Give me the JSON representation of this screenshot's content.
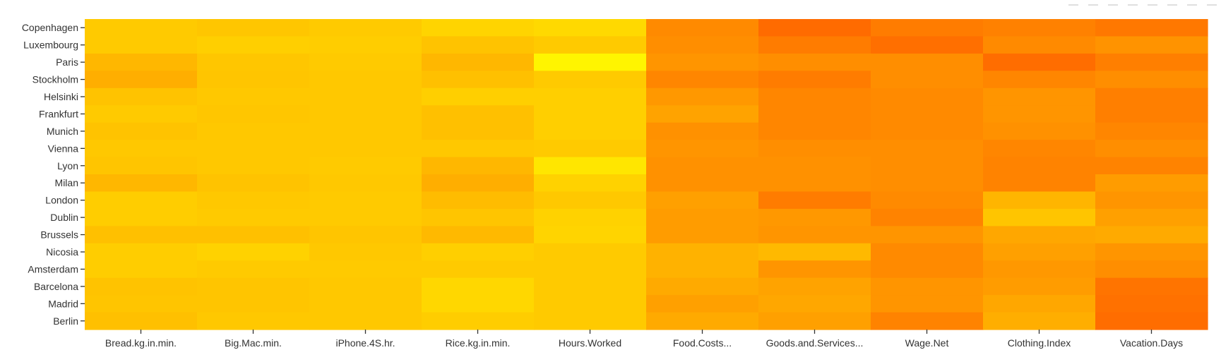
{
  "modebar": {
    "icons": [
      "camera-icon",
      "zoom-icon",
      "pan-icon",
      "box-select-icon",
      "zoom-in-icon",
      "zoom-out-icon",
      "autoscale-icon",
      "reset-icon"
    ]
  },
  "chart_data": {
    "type": "heatmap",
    "title": "",
    "xlabel": "",
    "ylabel": "",
    "x": [
      "Bread.kg.in.min.",
      "Big.Mac.min.",
      "iPhone.4S.hr.",
      "Rice.kg.in.min.",
      "Hours.Worked",
      "Food.Costs...",
      "Goods.and.Services...",
      "Wage.Net",
      "Clothing.Index",
      "Vacation.Days"
    ],
    "y": [
      "Copenhagen",
      "Luxembourg",
      "Paris",
      "Stockholm",
      "Helsinki",
      "Frankfurt",
      "Munich",
      "Vienna",
      "Lyon",
      "Milan",
      "London",
      "Dublin",
      "Brussels",
      "Nicosia",
      "Amsterdam",
      "Barcelona",
      "Madrid",
      "Berlin"
    ],
    "colorscale": [
      [
        0,
        "#ffff00"
      ],
      [
        0.5,
        "#ffc000"
      ],
      [
        1,
        "#ff6600"
      ]
    ],
    "z": [
      [
        0.42,
        0.45,
        0.42,
        0.34,
        0.3,
        0.8,
        0.97,
        0.88,
        0.85,
        0.9
      ],
      [
        0.42,
        0.38,
        0.4,
        0.48,
        0.42,
        0.78,
        0.88,
        0.95,
        0.8,
        0.75
      ],
      [
        0.55,
        0.45,
        0.42,
        0.55,
        0.08,
        0.74,
        0.78,
        0.78,
        0.96,
        0.86
      ],
      [
        0.6,
        0.46,
        0.44,
        0.5,
        0.42,
        0.82,
        0.88,
        0.78,
        0.82,
        0.78
      ],
      [
        0.48,
        0.44,
        0.44,
        0.38,
        0.38,
        0.72,
        0.82,
        0.8,
        0.74,
        0.86
      ],
      [
        0.42,
        0.45,
        0.44,
        0.5,
        0.38,
        0.66,
        0.82,
        0.8,
        0.74,
        0.86
      ],
      [
        0.48,
        0.44,
        0.44,
        0.5,
        0.38,
        0.76,
        0.82,
        0.8,
        0.76,
        0.82
      ],
      [
        0.44,
        0.44,
        0.44,
        0.44,
        0.42,
        0.74,
        0.78,
        0.78,
        0.82,
        0.78
      ],
      [
        0.46,
        0.44,
        0.42,
        0.55,
        0.2,
        0.76,
        0.76,
        0.78,
        0.84,
        0.84
      ],
      [
        0.55,
        0.48,
        0.44,
        0.6,
        0.36,
        0.76,
        0.76,
        0.78,
        0.84,
        0.7
      ],
      [
        0.4,
        0.44,
        0.42,
        0.52,
        0.44,
        0.68,
        0.88,
        0.8,
        0.56,
        0.74
      ],
      [
        0.4,
        0.42,
        0.42,
        0.46,
        0.36,
        0.7,
        0.72,
        0.84,
        0.46,
        0.68
      ],
      [
        0.5,
        0.5,
        0.46,
        0.54,
        0.34,
        0.7,
        0.74,
        0.74,
        0.64,
        0.62
      ],
      [
        0.4,
        0.36,
        0.44,
        0.38,
        0.42,
        0.58,
        0.54,
        0.8,
        0.68,
        0.74
      ],
      [
        0.4,
        0.42,
        0.42,
        0.42,
        0.42,
        0.58,
        0.74,
        0.8,
        0.72,
        0.78
      ],
      [
        0.48,
        0.46,
        0.44,
        0.32,
        0.42,
        0.62,
        0.66,
        0.74,
        0.7,
        0.92
      ],
      [
        0.46,
        0.46,
        0.44,
        0.32,
        0.42,
        0.68,
        0.64,
        0.74,
        0.64,
        0.94
      ],
      [
        0.5,
        0.44,
        0.44,
        0.4,
        0.42,
        0.62,
        0.68,
        0.84,
        0.6,
        0.96
      ]
    ]
  }
}
